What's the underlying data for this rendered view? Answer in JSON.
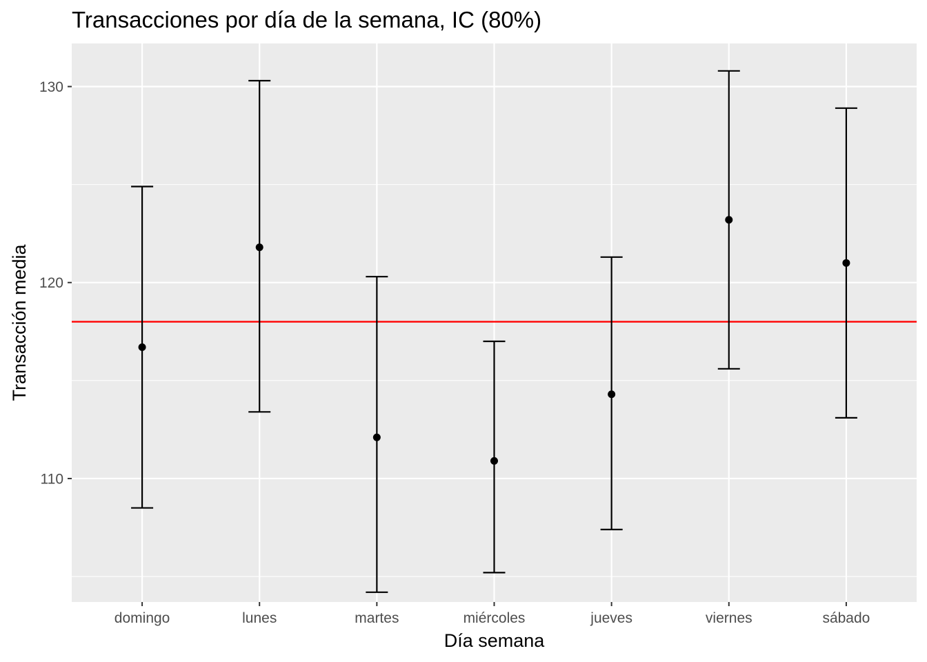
{
  "chart_data": {
    "type": "errorbar",
    "title": "Transacciones por día de la semana, IC (80%)",
    "xlabel": "Día semana",
    "ylabel": "Transacción media",
    "categories": [
      "domingo",
      "lunes",
      "martes",
      "miércoles",
      "jueves",
      "viernes",
      "sábado"
    ],
    "means": [
      116.7,
      121.8,
      112.1,
      110.9,
      114.3,
      123.2,
      121.0
    ],
    "lower": [
      108.5,
      113.4,
      104.2,
      105.2,
      107.4,
      115.6,
      113.1
    ],
    "upper": [
      124.9,
      130.3,
      120.3,
      117.0,
      121.3,
      130.8,
      128.9
    ],
    "reference_line": {
      "value": 118.0,
      "color": "#ff0000"
    },
    "ylim": [
      103.7,
      132.2
    ],
    "y_ticks": [
      110,
      120,
      130
    ],
    "grid": true,
    "colors": {
      "panel": "#ebebeb",
      "grid": "#ffffff",
      "marks": "#000000",
      "tick_text": "#4d4d4d"
    }
  }
}
